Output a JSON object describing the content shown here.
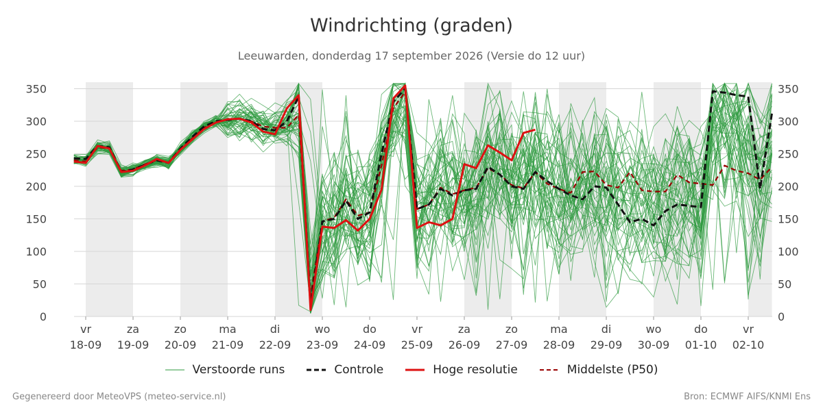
{
  "chart_data": {
    "type": "line",
    "title": "Windrichting (graden)",
    "subtitle": "Leeuwarden, donderdag 17 september 2026 (Versie do 12 uur)",
    "ylim": [
      0,
      360
    ],
    "yticks": [
      0,
      50,
      100,
      150,
      200,
      250,
      300,
      350
    ],
    "xlim": [
      -0.25,
      14.5
    ],
    "grid": "horizontal",
    "shaded_days": [
      [
        0.0,
        1.0
      ],
      [
        2.0,
        3.0
      ],
      [
        4.0,
        5.0
      ],
      [
        8.0,
        9.0
      ],
      [
        10.0,
        11.0
      ],
      [
        12.0,
        13.0
      ],
      [
        14.0,
        14.5
      ]
    ],
    "x_ticks": [
      {
        "x": 0,
        "day": "vr",
        "date": "18-09"
      },
      {
        "x": 1,
        "day": "za",
        "date": "19-09"
      },
      {
        "x": 2,
        "day": "zo",
        "date": "20-09"
      },
      {
        "x": 3,
        "day": "ma",
        "date": "21-09"
      },
      {
        "x": 4,
        "day": "di",
        "date": "22-09"
      },
      {
        "x": 5,
        "day": "wo",
        "date": "23-09"
      },
      {
        "x": 6,
        "day": "do",
        "date": "24-09"
      },
      {
        "x": 7,
        "day": "vr",
        "date": "25-09"
      },
      {
        "x": 8,
        "day": "za",
        "date": "26-09"
      },
      {
        "x": 9,
        "day": "zo",
        "date": "27-09"
      },
      {
        "x": 10,
        "day": "ma",
        "date": "28-09"
      },
      {
        "x": 11,
        "day": "di",
        "date": "29-09"
      },
      {
        "x": 12,
        "day": "wo",
        "date": "30-09"
      },
      {
        "x": 13,
        "day": "do",
        "date": "01-10"
      },
      {
        "x": 14,
        "day": "vr",
        "date": "02-10"
      }
    ],
    "series": [
      {
        "name": "Controle",
        "color": "#111111",
        "style": "dashed",
        "x": [
          -0.25,
          0,
          0.25,
          0.5,
          0.75,
          1,
          1.25,
          1.5,
          1.75,
          2,
          2.25,
          2.5,
          2.75,
          3,
          3.25,
          3.5,
          3.75,
          4,
          4.25,
          4.5,
          4.75,
          5,
          5.25,
          5.5,
          5.75,
          6,
          6.25,
          6.5,
          6.75,
          7,
          7.25,
          7.5,
          7.75,
          8,
          8.25,
          8.5,
          8.75,
          9,
          9.25,
          9.5,
          9.75,
          10,
          10.25,
          10.5,
          10.75,
          11,
          11.25,
          11.5,
          11.75,
          12,
          12.25,
          12.5,
          12.75,
          13,
          13.25,
          13.5,
          13.75,
          14,
          14.25,
          14.5
        ],
        "values": [
          243,
          242,
          262,
          260,
          222,
          226,
          233,
          240,
          236,
          258,
          276,
          292,
          300,
          302,
          304,
          300,
          288,
          286,
          300,
          338,
          18,
          146,
          150,
          178,
          150,
          160,
          250,
          330,
          350,
          165,
          172,
          196,
          186,
          194,
          196,
          230,
          218,
          200,
          196,
          222,
          208,
          196,
          186,
          180,
          200,
          198,
          172,
          145,
          150,
          140,
          162,
          172,
          170,
          168,
          346,
          344,
          340,
          338,
          196,
          312
        ]
      },
      {
        "name": "Hoge resolutie",
        "color": "#dd1111",
        "style": "solid",
        "x": [
          -0.25,
          0,
          0.25,
          0.5,
          0.75,
          1,
          1.25,
          1.5,
          1.75,
          2,
          2.25,
          2.5,
          2.75,
          3,
          3.25,
          3.5,
          3.75,
          4,
          4.25,
          4.5,
          4.75,
          5,
          5.25,
          5.5,
          5.75,
          6,
          6.25,
          6.5,
          6.75,
          7,
          7.25,
          7.5,
          7.75,
          8,
          8.25,
          8.5,
          8.75,
          9,
          9.25,
          9.5
        ],
        "values": [
          238,
          236,
          262,
          258,
          222,
          224,
          232,
          242,
          236,
          256,
          272,
          288,
          298,
          303,
          304,
          298,
          284,
          280,
          320,
          340,
          10,
          138,
          136,
          148,
          132,
          150,
          195,
          335,
          355,
          136,
          145,
          140,
          150,
          234,
          228,
          263,
          252,
          240,
          282,
          287
        ]
      },
      {
        "name": "Middelste (P50)",
        "color": "#990000",
        "style": "dashed",
        "x": [
          -0.25,
          0,
          0.25,
          0.5,
          0.75,
          1,
          1.25,
          1.5,
          1.75,
          2,
          2.25,
          2.5,
          2.75,
          3,
          3.25,
          3.5,
          3.75,
          4,
          4.25,
          4.5,
          4.75,
          5,
          5.25,
          5.5,
          5.75,
          6,
          6.25,
          6.5,
          6.75,
          7,
          7.25,
          7.5,
          7.75,
          8,
          8.25,
          8.5,
          8.75,
          9,
          9.25,
          9.5,
          9.75,
          10,
          10.25,
          10.5,
          10.75,
          11,
          11.25,
          11.5,
          11.75,
          12,
          12.25,
          12.5,
          12.75,
          13,
          13.25,
          13.5,
          13.75,
          14,
          14.25,
          14.5
        ],
        "values": [
          240,
          238,
          260,
          258,
          224,
          226,
          234,
          240,
          236,
          256,
          274,
          290,
          300,
          303,
          304,
          300,
          292,
          290,
          290,
          310,
          30,
          146,
          152,
          180,
          155,
          160,
          232,
          320,
          345,
          165,
          172,
          198,
          188,
          194,
          198,
          228,
          218,
          202,
          197,
          222,
          204,
          196,
          190,
          222,
          223,
          202,
          198,
          222,
          194,
          192,
          192,
          218,
          206,
          204,
          202,
          232,
          224,
          220,
          210,
          230
        ]
      }
    ],
    "ensemble": {
      "name": "Verstoorde runs",
      "color": "#2e9a3e",
      "members": 50,
      "note": "individual ensemble member traces drawn as thin lines"
    },
    "legend": {
      "placement": "bottom",
      "entries": [
        "Verstoorde runs",
        "Controle",
        "Hoge resolutie",
        "Middelste (P50)"
      ]
    }
  },
  "footer": {
    "left": "Gegenereerd door MeteoVPS (meteo-service.nl)",
    "right": "Bron: ECMWF AIFS/KNMI Ens"
  }
}
